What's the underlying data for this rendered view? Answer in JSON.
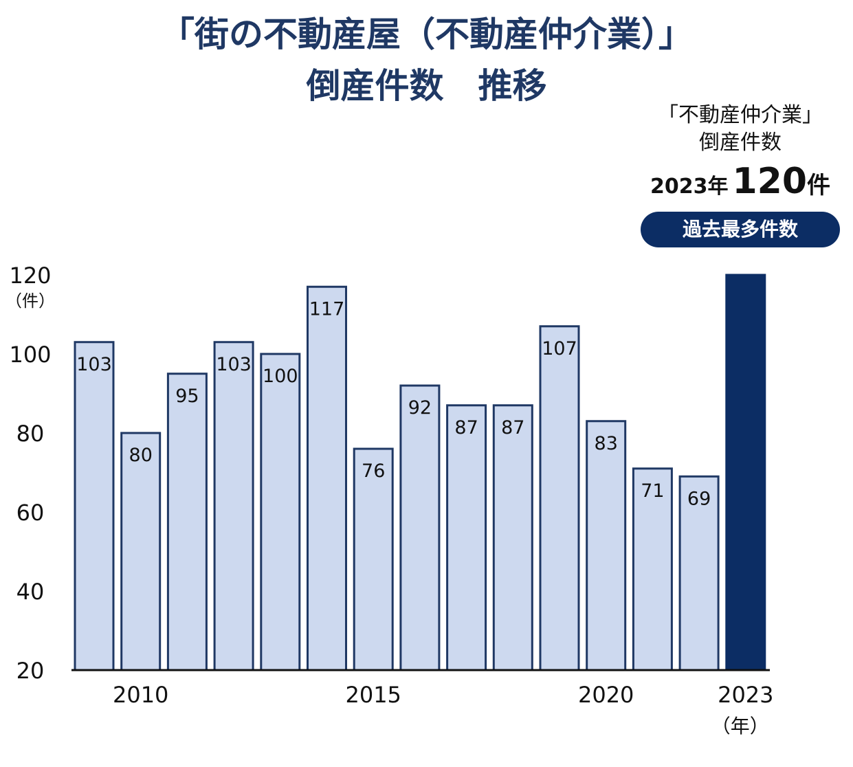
{
  "title_line1": "「街の不動産屋（不動産仲介業）」",
  "title_line2": "倒産件数　推移",
  "callout": {
    "line1": "「不動産仲介業」",
    "line2": "倒産件数",
    "year": "2023年",
    "value": "120",
    "unit": "件",
    "badge": "過去最多件数"
  },
  "colors": {
    "bar_fill": "#cdd9ef",
    "bar_stroke": "#1f3864",
    "highlight_fill": "#0c2d64",
    "title": "#1f3864"
  },
  "chart_data": {
    "type": "bar",
    "x": [
      2009,
      2010,
      2011,
      2012,
      2013,
      2014,
      2015,
      2016,
      2017,
      2018,
      2019,
      2020,
      2021,
      2022,
      2023
    ],
    "values": [
      103,
      80,
      95,
      103,
      100,
      117,
      76,
      92,
      87,
      87,
      107,
      83,
      71,
      69,
      120
    ],
    "data_labels": [
      "103",
      "80",
      "95",
      "103",
      "100",
      "117",
      "76",
      "92",
      "87",
      "87",
      "107",
      "83",
      "71",
      "69",
      ""
    ],
    "highlight_index": 14,
    "ylim": [
      20,
      120
    ],
    "yticks": [
      "20",
      "40",
      "60",
      "80",
      "100",
      "120"
    ],
    "ylabel_unit": "（件）",
    "xtick_labels": [
      {
        "index": 1,
        "label": "2010"
      },
      {
        "index": 6,
        "label": "2015"
      },
      {
        "index": 11,
        "label": "2020"
      },
      {
        "index": 14,
        "label": "2023"
      }
    ],
    "xlabel_unit": "（年）",
    "grid": false,
    "legend": "none"
  }
}
